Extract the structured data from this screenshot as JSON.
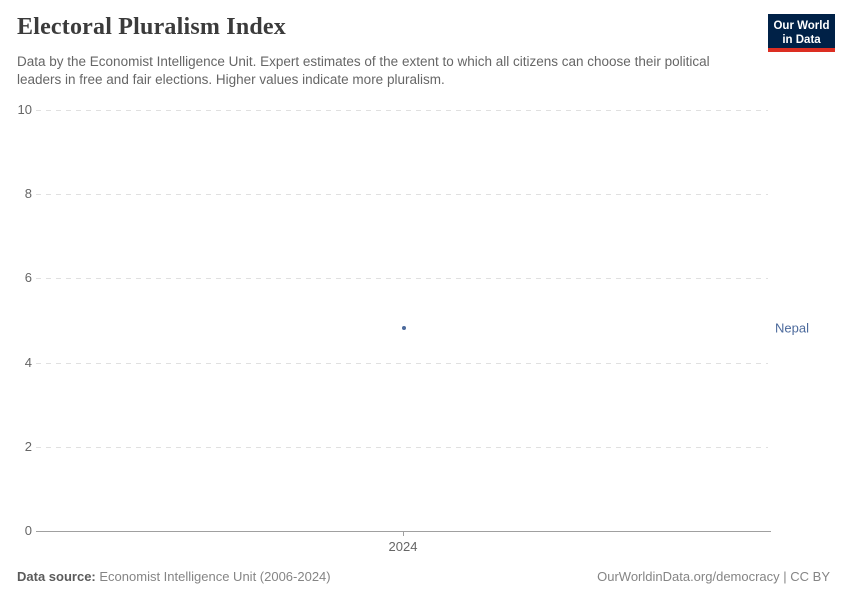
{
  "header": {
    "title": "Electoral Pluralism Index",
    "subtitle": "Data by the Economist Intelligence Unit. Expert estimates of the extent to which all citizens can choose their political leaders in free and fair elections. Higher values indicate more pluralism.",
    "logo": {
      "line1": "Our World",
      "line2": "in Data",
      "bg_color": "#002147",
      "stripe_color": "#dc2e22",
      "text_color": "#ffffff"
    }
  },
  "chart_data": {
    "type": "scatter",
    "title": "Electoral Pluralism Index",
    "x": [
      2024
    ],
    "xticks": [
      "2024"
    ],
    "series": [
      {
        "name": "Nepal",
        "values": [
          4.83
        ],
        "color": "#4C6A9C"
      }
    ],
    "xlabel": "",
    "ylabel": "",
    "ylim": [
      0,
      10
    ],
    "yticks": [
      0,
      2,
      4,
      6,
      8,
      10
    ],
    "grid": "horizontal-dashed",
    "gridline_color": "#e0e0e0",
    "axis_line_color": "#a0a0a0",
    "tick_label_color": "#666666",
    "legend": "entity-label-right"
  },
  "footer": {
    "datasource_label": "Data source:",
    "datasource_value": "Economist Intelligence Unit (2006-2024)",
    "credit": "OurWorldinData.org/democracy | CC BY"
  }
}
